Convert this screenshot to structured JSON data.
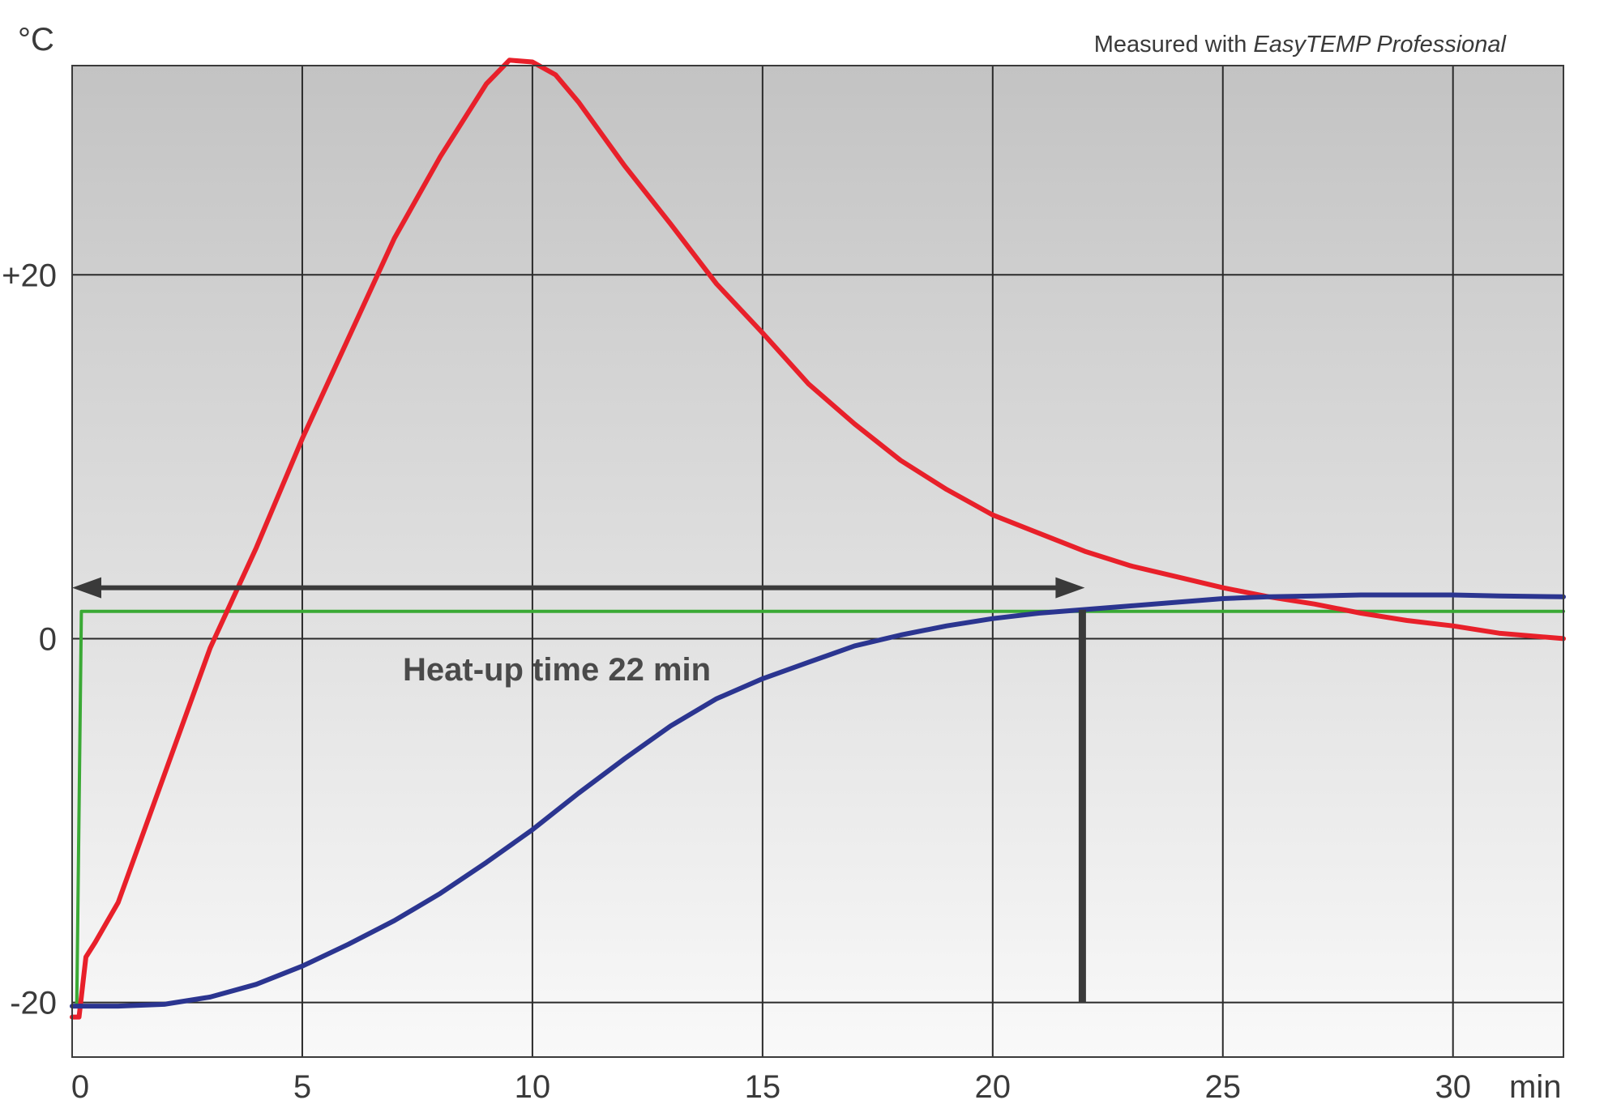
{
  "chart_data": {
    "type": "line",
    "unit_label": "°C",
    "x_unit_label": "min",
    "note_prefix": "Measured with ",
    "note_product": "EasyTEMP Professional",
    "annotation": "Heat-up time 22 min",
    "heatup_time": 22,
    "heatup_level": 1.5,
    "xlim": [
      0,
      32.4
    ],
    "ylim": [
      -23,
      31.5
    ],
    "x_ticks": [
      0,
      5,
      10,
      15,
      20,
      25,
      30
    ],
    "x_tick_labels": [
      "0",
      "5",
      "10",
      "15",
      "20",
      "25",
      "30"
    ],
    "y_ticks": [
      20,
      0,
      -20
    ],
    "y_tick_labels": [
      "+20",
      "0",
      "-20"
    ],
    "grid": true,
    "series": [
      {
        "color": "#e8202a",
        "x": [
          0,
          0.15,
          0.3,
          0.5,
          1,
          2,
          3,
          4,
          5,
          6,
          7,
          8,
          9,
          9.5,
          10,
          10.5,
          11,
          12,
          13,
          14,
          15,
          16,
          17,
          18,
          19,
          20,
          21,
          22,
          23,
          24,
          25,
          26,
          27,
          28,
          29,
          30,
          31,
          32.4
        ],
        "y": [
          -20.8,
          -20.8,
          -17.5,
          -16.7,
          -14.5,
          -7.5,
          -0.5,
          5,
          11,
          16.5,
          22,
          26.5,
          30.5,
          31.8,
          31.7,
          31,
          29.5,
          26,
          22.8,
          19.5,
          16.8,
          14,
          11.8,
          9.8,
          8.2,
          6.8,
          5.8,
          4.8,
          4,
          3.4,
          2.8,
          2.3,
          1.9,
          1.4,
          1.0,
          0.7,
          0.3,
          0
        ]
      },
      {
        "color": "#2b3590",
        "x": [
          0,
          1,
          2,
          3,
          4,
          5,
          6,
          7,
          8,
          9,
          10,
          11,
          12,
          13,
          14,
          15,
          16,
          17,
          18,
          19,
          20,
          21,
          22,
          23,
          24,
          25,
          26,
          27,
          28,
          29,
          30,
          31,
          32.4
        ],
        "y": [
          -20.2,
          -20.2,
          -20.1,
          -19.7,
          -19,
          -18,
          -16.8,
          -15.5,
          -14,
          -12.3,
          -10.5,
          -8.5,
          -6.6,
          -4.8,
          -3.3,
          -2.2,
          -1.3,
          -0.4,
          0.2,
          0.7,
          1.1,
          1.4,
          1.6,
          1.8,
          2.0,
          2.2,
          2.3,
          2.35,
          2.4,
          2.4,
          2.4,
          2.35,
          2.3
        ]
      },
      {
        "color": "#3aa935",
        "x": [
          0,
          0.1,
          0.2,
          32.4
        ],
        "y": [
          -20.2,
          -20.2,
          1.5,
          1.5
        ]
      }
    ]
  }
}
